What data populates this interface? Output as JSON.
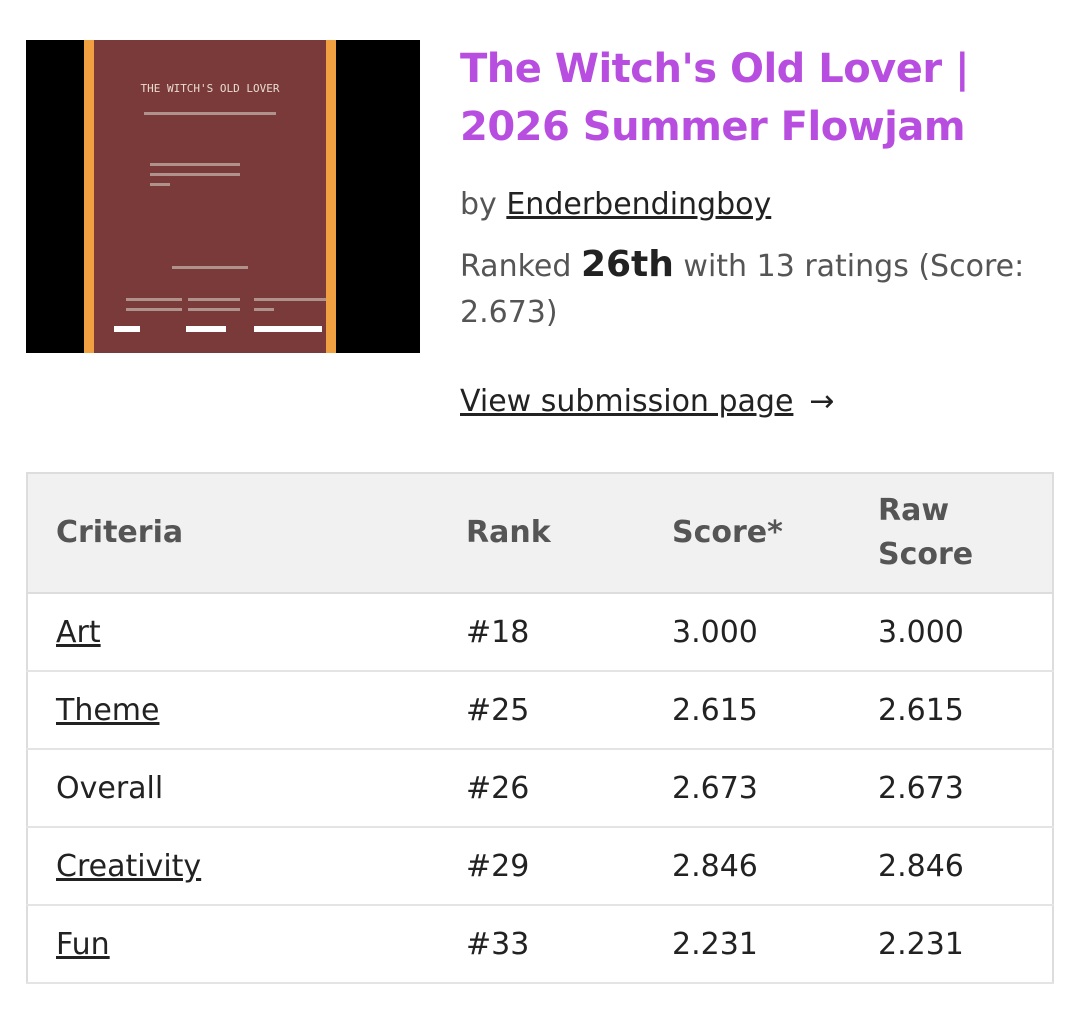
{
  "thumbnail": {
    "title": "THE WITCH'S OLD LOVER"
  },
  "header": {
    "title": "The Witch's Old Lover | 2026 Summer Flowjam",
    "by": "by",
    "author": "Enderbendingboy",
    "ranked_label": "Ranked",
    "rank": "26th",
    "ratings_text": "with 13 ratings (Score: 2.673)",
    "link": "View submission page",
    "arrow": "→"
  },
  "table": {
    "headers": [
      "Criteria",
      "Rank",
      "Score*",
      "Raw Score"
    ],
    "rows": [
      [
        "Art",
        "#18",
        "3.000",
        "3.000"
      ],
      [
        "Theme",
        "#25",
        "2.615",
        "2.615"
      ],
      [
        "Overall",
        "#26",
        "2.673",
        "2.673"
      ],
      [
        "Creativity",
        "#29",
        "2.846",
        "2.846"
      ],
      [
        "Fun",
        "#33",
        "2.231",
        "2.231"
      ]
    ]
  }
}
